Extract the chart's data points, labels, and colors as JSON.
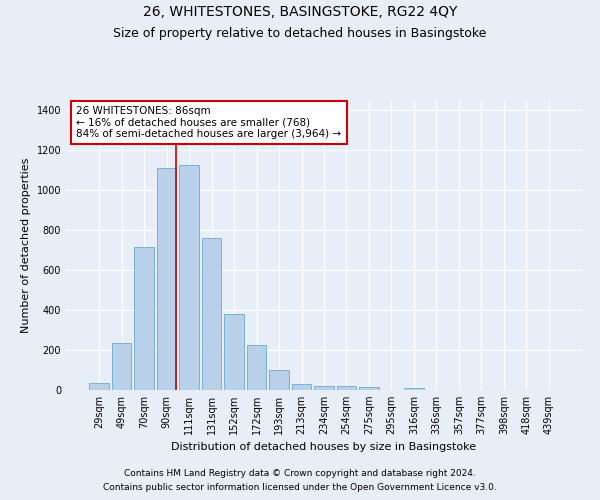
{
  "title": "26, WHITESTONES, BASINGSTOKE, RG22 4QY",
  "subtitle": "Size of property relative to detached houses in Basingstoke",
  "xlabel": "Distribution of detached houses by size in Basingstoke",
  "ylabel": "Number of detached properties",
  "footnote1": "Contains HM Land Registry data © Crown copyright and database right 2024.",
  "footnote2": "Contains public sector information licensed under the Open Government Licence v3.0.",
  "categories": [
    "29sqm",
    "49sqm",
    "70sqm",
    "90sqm",
    "111sqm",
    "131sqm",
    "152sqm",
    "172sqm",
    "193sqm",
    "213sqm",
    "234sqm",
    "254sqm",
    "275sqm",
    "295sqm",
    "316sqm",
    "336sqm",
    "357sqm",
    "377sqm",
    "398sqm",
    "418sqm",
    "439sqm"
  ],
  "values": [
    35,
    235,
    715,
    1110,
    1125,
    760,
    380,
    225,
    100,
    32,
    22,
    20,
    15,
    0,
    10,
    0,
    0,
    0,
    0,
    0,
    0
  ],
  "bar_color": "#b8d0ea",
  "bar_edge_color": "#6aaad4",
  "vline_x": 3.42,
  "vline_color": "#cc0000",
  "annotation_title": "26 WHITESTONES: 86sqm",
  "annotation_line2": "← 16% of detached houses are smaller (768)",
  "annotation_line3": "84% of semi-detached houses are larger (3,964) →",
  "annotation_box_facecolor": "#ffffff",
  "annotation_box_edgecolor": "#cc0000",
  "ylim": [
    0,
    1450
  ],
  "yticks": [
    0,
    200,
    400,
    600,
    800,
    1000,
    1200,
    1400
  ],
  "background_color": "#e8eef8",
  "grid_color": "#ffffff",
  "title_fontsize": 10,
  "subtitle_fontsize": 9,
  "axis_label_fontsize": 8,
  "tick_fontsize": 7,
  "annotation_fontsize": 7.5,
  "footnote_fontsize": 6.5
}
